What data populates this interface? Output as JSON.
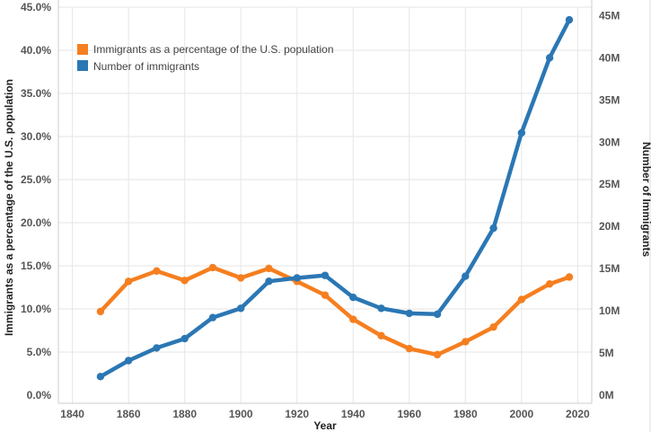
{
  "chart_data": {
    "type": "line",
    "title": "",
    "xlabel": "Year",
    "ylabel_left": "Immigrants as a percentage of the U.S. population",
    "ylabel_right": "Number of Immigrants",
    "xlim": [
      1835,
      2025
    ],
    "x_ticks": [
      1840,
      1860,
      1880,
      1900,
      1920,
      1940,
      1960,
      1980,
      2000,
      2020
    ],
    "y_left_lim": [
      0,
      45
    ],
    "y_left_ticks": [
      0,
      5,
      10,
      15,
      20,
      25,
      30,
      35,
      40,
      45
    ],
    "y_left_tick_labels": [
      "0.0%",
      "5.0%",
      "10.0%",
      "15.0%",
      "20.0%",
      "25.0%",
      "30.0%",
      "35.0%",
      "40.0%",
      "45.0%"
    ],
    "y_right_lim": [
      0,
      46
    ],
    "y_right_ticks": [
      0,
      5,
      10,
      15,
      20,
      25,
      30,
      35,
      40,
      45
    ],
    "y_right_tick_labels": [
      "0M",
      "5M",
      "10M",
      "15M",
      "20M",
      "25M",
      "30M",
      "35M",
      "40M",
      "45M"
    ],
    "grid": true,
    "legend_position": "top-left",
    "series": [
      {
        "name": "Immigrants as a percentage of the U.S. population",
        "axis": "left",
        "color": "#f57f20",
        "x": [
          1850,
          1860,
          1870,
          1880,
          1890,
          1900,
          1910,
          1920,
          1930,
          1940,
          1950,
          1960,
          1970,
          1980,
          1990,
          2000,
          2010,
          2017
        ],
        "values": [
          9.7,
          13.2,
          14.4,
          13.3,
          14.8,
          13.6,
          14.7,
          13.2,
          11.6,
          8.8,
          6.9,
          5.4,
          4.7,
          6.2,
          7.9,
          11.1,
          12.9,
          13.7
        ]
      },
      {
        "name": "Number of immigrants",
        "axis": "right",
        "color": "#2b77b4",
        "x": [
          1850,
          1860,
          1870,
          1880,
          1890,
          1900,
          1910,
          1920,
          1930,
          1940,
          1950,
          1960,
          1970,
          1980,
          1990,
          2000,
          2010,
          2017
        ],
        "values": [
          2.2,
          4.1,
          5.6,
          6.7,
          9.2,
          10.3,
          13.5,
          13.9,
          14.2,
          11.6,
          10.3,
          9.7,
          9.6,
          14.1,
          19.8,
          31.1,
          40.0,
          44.5
        ]
      }
    ]
  }
}
